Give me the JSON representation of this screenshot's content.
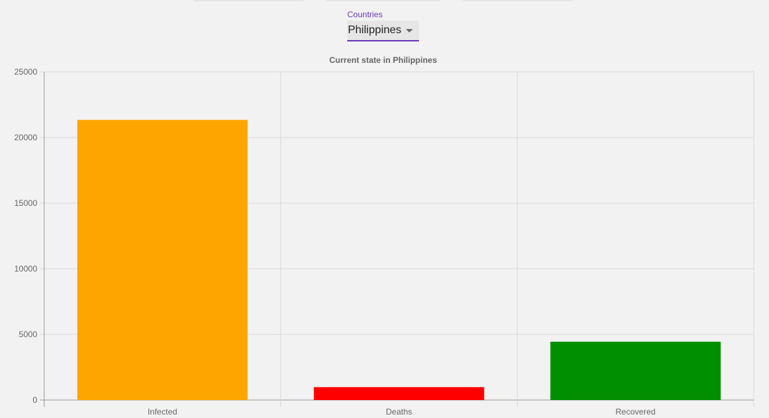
{
  "dropdown": {
    "label": "Countries",
    "selected": "Philippines",
    "accent_color": "#673ab7"
  },
  "chart_data": {
    "type": "bar",
    "title": "Current state in Philippines",
    "categories": [
      "Infected",
      "Deaths",
      "Recovered"
    ],
    "values": [
      21340,
      982,
      4441
    ],
    "colors": [
      "#ffa500",
      "#ff0000",
      "#008f00"
    ],
    "ylim": [
      0,
      25000
    ],
    "yticks": [
      0,
      5000,
      10000,
      15000,
      20000,
      25000
    ],
    "xlabel": "",
    "ylabel": "",
    "grid": true,
    "legend": "none"
  }
}
